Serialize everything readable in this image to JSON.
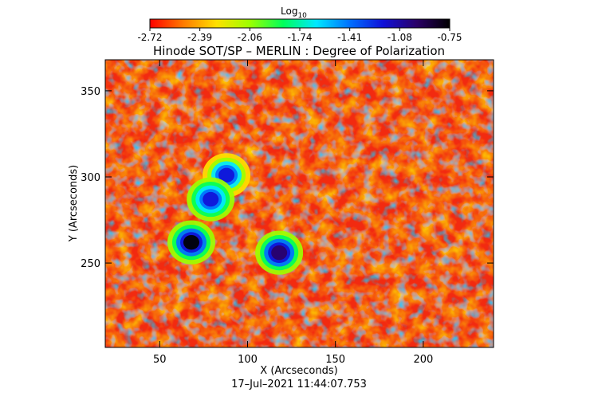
{
  "colorbar": {
    "label_main": "Log",
    "label_sub": "10",
    "ticks": [
      "-2.72",
      "-2.39",
      "-2.06",
      "-1.74",
      "-1.41",
      "-1.08",
      "-0.75"
    ],
    "colors": [
      "#ff0000",
      "#ff7a00",
      "#ffe000",
      "#9cff00",
      "#00ff5a",
      "#00e8ff",
      "#0070ff",
      "#1010d8",
      "#2a0068",
      "#000000"
    ]
  },
  "chart_data": {
    "type": "heatmap",
    "title": "Hinode SOT/SP – MERLIN : Degree of Polarization",
    "xlabel": "X (Arcseconds)",
    "ylabel": "Y (Arcseconds)",
    "xlim": [
      19,
      240
    ],
    "ylim": [
      201,
      368
    ],
    "xticks": [
      50,
      100,
      150,
      200
    ],
    "yticks": [
      250,
      300,
      350
    ],
    "value_scale": "log10",
    "value_range": [
      -2.72,
      -0.75
    ],
    "features": [
      {
        "name": "strong polarization patch",
        "x": 68,
        "y": 262,
        "level": -0.8
      },
      {
        "name": "strong polarization patch",
        "x": 118,
        "y": 256,
        "level": -0.9
      },
      {
        "name": "strong polarization patch",
        "x": 88,
        "y": 301,
        "level": -1.2
      },
      {
        "name": "strong polarization patch",
        "x": 79,
        "y": 287,
        "level": -1.1
      }
    ]
  },
  "footer": {
    "timestamp": "17–Jul–2021  11:44:07.753"
  }
}
